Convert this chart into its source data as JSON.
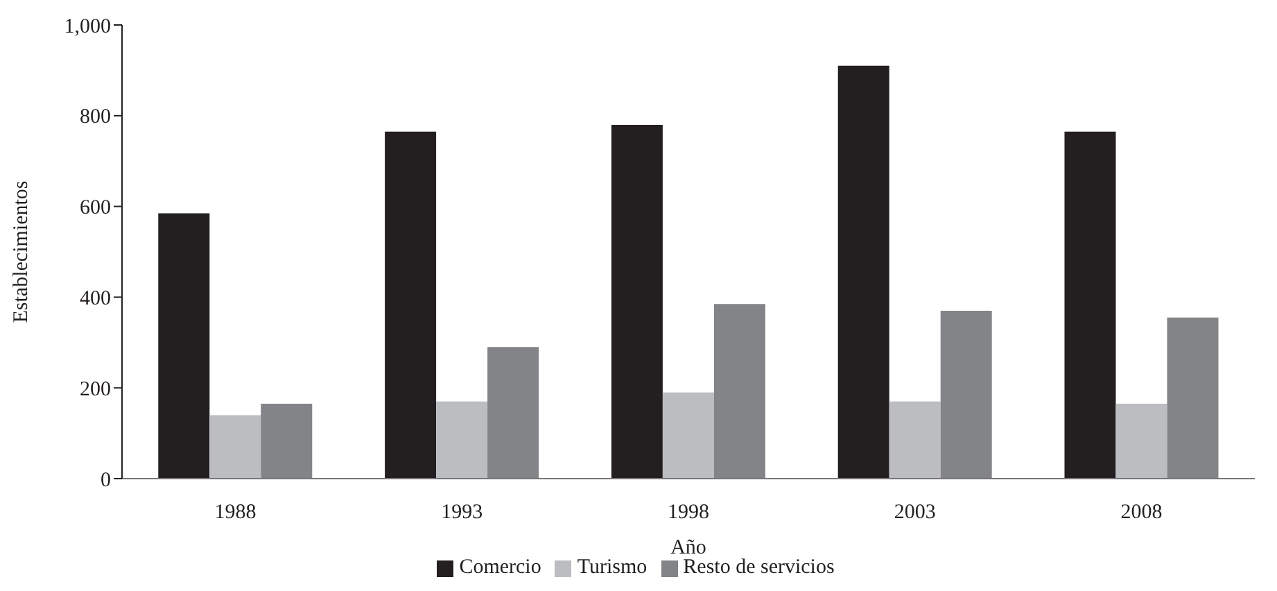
{
  "chart_data": {
    "type": "bar",
    "xlabel": "Año",
    "ylabel": "Establecimientos",
    "categories": [
      "1988",
      "1993",
      "1998",
      "2003",
      "2008"
    ],
    "series": [
      {
        "name": "Comercio",
        "color": "#231f20",
        "values": [
          585,
          765,
          780,
          910,
          765
        ]
      },
      {
        "name": "Turismo",
        "color": "#bcbdc0",
        "values": [
          140,
          170,
          190,
          170,
          165
        ]
      },
      {
        "name": "Resto de servicios",
        "color": "#838487",
        "values": [
          165,
          290,
          385,
          370,
          355
        ]
      }
    ],
    "ylim": [
      0,
      1000
    ],
    "yticks": [
      0,
      200,
      400,
      600,
      800,
      {
        "value": 1000,
        "label": "1,000"
      }
    ],
    "grid": false,
    "legend": "bottom"
  }
}
